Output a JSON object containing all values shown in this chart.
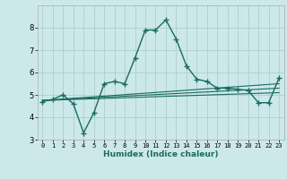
{
  "title": "",
  "xlabel": "Humidex (Indice chaleur)",
  "xlim": [
    -0.5,
    23.5
  ],
  "ylim": [
    3,
    9
  ],
  "yticks": [
    3,
    4,
    5,
    6,
    7,
    8
  ],
  "xticks": [
    0,
    1,
    2,
    3,
    4,
    5,
    6,
    7,
    8,
    9,
    10,
    11,
    12,
    13,
    14,
    15,
    16,
    17,
    18,
    19,
    20,
    21,
    22,
    23
  ],
  "bg_color": "#cce8e8",
  "grid_color": "#aacfcf",
  "line_color": "#1a6b60",
  "main_x": [
    0,
    1,
    2,
    3,
    4,
    5,
    6,
    7,
    8,
    9,
    10,
    11,
    12,
    13,
    14,
    15,
    16,
    17,
    18,
    19,
    20,
    21,
    22,
    23
  ],
  "main_y": [
    4.7,
    4.8,
    5.0,
    4.6,
    3.3,
    4.2,
    5.5,
    5.6,
    5.5,
    6.65,
    7.9,
    7.9,
    8.35,
    7.5,
    6.3,
    5.7,
    5.6,
    5.3,
    5.3,
    5.25,
    5.2,
    4.65,
    4.65,
    5.75
  ],
  "trend1_x": [
    0,
    23
  ],
  "trend1_y": [
    4.75,
    5.3
  ],
  "trend2_x": [
    0,
    23
  ],
  "trend2_y": [
    4.75,
    5.5
  ],
  "trend3_x": [
    0,
    23
  ],
  "trend3_y": [
    4.75,
    5.1
  ]
}
